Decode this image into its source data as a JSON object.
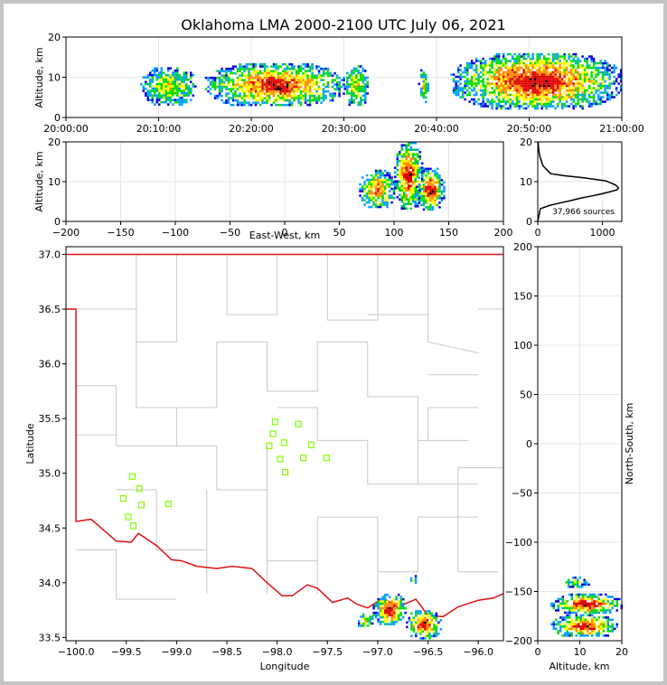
{
  "chart_data": {
    "type": "scatter",
    "title": "Oklahoma LMA 2000-2100 UTC July 06, 2021",
    "colors": {
      "frame_bg": "#c4c4c4",
      "red_boundary": "#e01010",
      "county_lines": "#c8c8c8",
      "stations": "#7fff00",
      "grid": "#e6e6e6"
    },
    "source_colormap": [
      "#0000dc",
      "#00a0ff",
      "#00dc00",
      "#ffff00",
      "#ff8c00",
      "#e00000",
      "#000000"
    ],
    "time_panel": {
      "ylabel": "Altitude, km",
      "ylim": [
        0,
        20
      ],
      "yticks": [
        "0",
        "10",
        "20"
      ],
      "xticks": [
        "20:00:00",
        "20:10:00",
        "20:20:00",
        "20:30:00",
        "20:40:00",
        "20:50:00",
        "21:00:00"
      ],
      "activity": [
        {
          "t0": 8.0,
          "t1": 14.0,
          "z0": 3.5,
          "z1": 12.5,
          "intensity": 0.45
        },
        {
          "t0": 15.0,
          "t1": 30.0,
          "z0": 3.0,
          "z1": 13.5,
          "intensity": 0.85
        },
        {
          "t0": 30.0,
          "t1": 32.5,
          "z0": 3.0,
          "z1": 13.0,
          "intensity": 0.45
        },
        {
          "t0": 38.0,
          "t1": 39.0,
          "z0": 3.5,
          "z1": 12.0,
          "intensity": 0.4
        },
        {
          "t0": 41.5,
          "t1": 60.0,
          "z0": 2.5,
          "z1": 16.0,
          "intensity": 0.95
        }
      ]
    },
    "ew_panel": {
      "xlabel": "East-West, km",
      "ylabel": "Altitude, km",
      "xlim": [
        -200,
        200
      ],
      "ylim": [
        0,
        20
      ],
      "xticks": [
        "−200",
        "−150",
        "−100",
        "−50",
        "0",
        "50",
        "100",
        "150",
        "200"
      ],
      "yticks": [
        "0",
        "10",
        "20"
      ],
      "activity": [
        {
          "x0": 68,
          "x1": 100,
          "z0": 3.5,
          "z1": 13.0,
          "intensity": 0.7
        },
        {
          "x0": 100,
          "x1": 125,
          "z0": 3.0,
          "z1": 20.0,
          "intensity": 0.9
        },
        {
          "x0": 120,
          "x1": 145,
          "z0": 3.0,
          "z1": 13.5,
          "intensity": 0.9
        }
      ]
    },
    "histogram_panel": {
      "annotation": "37,966 sources",
      "xlim": [
        0,
        1300
      ],
      "ylim": [
        0,
        20
      ],
      "xticks": [
        "0",
        "1000"
      ],
      "yticks": [
        "0",
        "10",
        "20"
      ],
      "profile": [
        {
          "count": 0,
          "alt": 0
        },
        {
          "count": 40,
          "alt": 3.2
        },
        {
          "count": 180,
          "alt": 4.0
        },
        {
          "count": 330,
          "alt": 4.6
        },
        {
          "count": 500,
          "alt": 5.2
        },
        {
          "count": 650,
          "alt": 5.8
        },
        {
          "count": 800,
          "alt": 6.3
        },
        {
          "count": 950,
          "alt": 6.8
        },
        {
          "count": 1080,
          "alt": 7.3
        },
        {
          "count": 1220,
          "alt": 7.9
        },
        {
          "count": 1250,
          "alt": 8.4
        },
        {
          "count": 1200,
          "alt": 9.2
        },
        {
          "count": 1050,
          "alt": 10.2
        },
        {
          "count": 700,
          "alt": 11.0
        },
        {
          "count": 400,
          "alt": 11.5
        },
        {
          "count": 200,
          "alt": 12.0
        },
        {
          "count": 140,
          "alt": 13.0
        },
        {
          "count": 80,
          "alt": 14.0
        },
        {
          "count": 60,
          "alt": 15.0
        },
        {
          "count": 30,
          "alt": 16.5
        },
        {
          "count": 15,
          "alt": 18.0
        },
        {
          "count": 5,
          "alt": 20.0
        }
      ]
    },
    "map_panel": {
      "xlabel": "Longitude",
      "ylabel": "Latitude",
      "xlim": [
        -100.1,
        -95.75
      ],
      "ylim": [
        33.47,
        37.07
      ],
      "xticks": [
        "−100.0",
        "−99.5",
        "−99.0",
        "−98.5",
        "−98.0",
        "−97.5",
        "−97.0",
        "−96.5",
        "−96.0"
      ],
      "yticks": [
        "33.5",
        "34.0",
        "34.5",
        "35.0",
        "35.5",
        "36.0",
        "36.5",
        "37.0"
      ],
      "stations": [
        {
          "lon": -98.02,
          "lat": 35.47
        },
        {
          "lon": -97.79,
          "lat": 35.45
        },
        {
          "lon": -98.04,
          "lat": 35.36
        },
        {
          "lon": -97.93,
          "lat": 35.28
        },
        {
          "lon": -98.08,
          "lat": 35.25
        },
        {
          "lon": -97.66,
          "lat": 35.26
        },
        {
          "lon": -97.97,
          "lat": 35.13
        },
        {
          "lon": -97.74,
          "lat": 35.14
        },
        {
          "lon": -97.51,
          "lat": 35.14
        },
        {
          "lon": -97.92,
          "lat": 35.01
        },
        {
          "lon": -99.44,
          "lat": 34.97
        },
        {
          "lon": -99.37,
          "lat": 34.86
        },
        {
          "lon": -99.53,
          "lat": 34.77
        },
        {
          "lon": -99.35,
          "lat": 34.71
        },
        {
          "lon": -99.08,
          "lat": 34.72
        },
        {
          "lon": -99.48,
          "lat": 34.6
        },
        {
          "lon": -99.43,
          "lat": 34.52
        }
      ],
      "activity": [
        {
          "lon0": -97.22,
          "lon1": -97.05,
          "lat0": 33.6,
          "lat1": 33.72,
          "intensity": 0.5
        },
        {
          "lon0": -97.05,
          "lon1": -96.72,
          "lat0": 33.62,
          "lat1": 33.9,
          "intensity": 0.9
        },
        {
          "lon0": -96.72,
          "lon1": -96.38,
          "lat0": 33.5,
          "lat1": 33.75,
          "intensity": 0.85
        },
        {
          "lon0": -96.7,
          "lon1": -96.6,
          "lat0": 34.0,
          "lat1": 34.07,
          "intensity": 0.3
        }
      ]
    },
    "ns_panel": {
      "xlabel": "Altitude, km",
      "ylabel": "North-South, km",
      "xlim": [
        0,
        20
      ],
      "ylim": [
        -200,
        200
      ],
      "xticks": [
        "0",
        "10",
        "20"
      ],
      "yticks": [
        "200",
        "150",
        "100",
        "50",
        "0",
        "−50",
        "−100",
        "−150",
        "−200"
      ],
      "activity": [
        {
          "z0": 6,
          "z1": 12,
          "y0": -145,
          "y1": -135,
          "intensity": 0.35
        },
        {
          "z0": 3,
          "z1": 20,
          "y0": -172,
          "y1": -152,
          "intensity": 0.9
        },
        {
          "z0": 3,
          "z1": 19,
          "y0": -195,
          "y1": -173,
          "intensity": 0.9
        }
      ]
    }
  }
}
